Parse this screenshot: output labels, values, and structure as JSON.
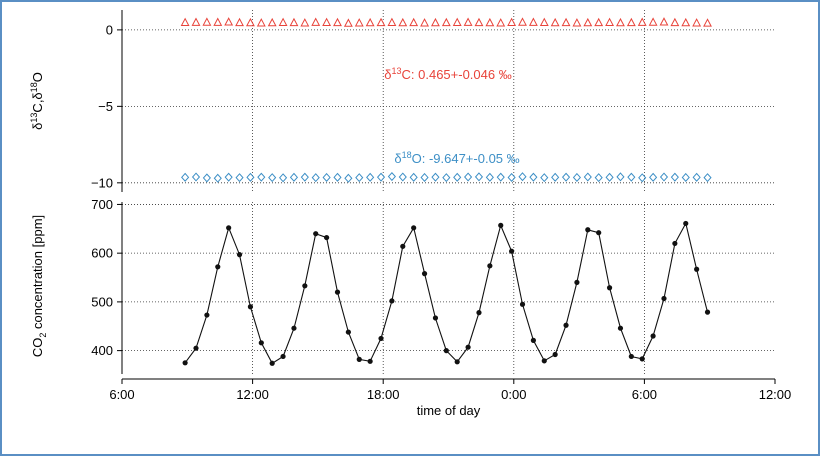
{
  "chart_data": [
    {
      "type": "scatter",
      "xlabel": "",
      "ylabel_parts": {
        "delta1": "δ",
        "sup1": "13",
        "mid": "C,δ",
        "sup2": "18",
        "end": "O"
      },
      "ylim": [
        -10.6,
        1.3
      ],
      "yticks": [
        0,
        -5,
        -10
      ],
      "ytick_labels": [
        "0",
        "−5",
        "−10"
      ],
      "grid": true,
      "series": [
        {
          "key": "d13c",
          "marker": "triangle",
          "color": "#e8433a",
          "annotation": {
            "delta": "δ",
            "sup": "13",
            "text": "C: 0.465+-0.046 ‰"
          },
          "x": [
            8.9,
            9.4,
            9.9,
            10.4,
            10.9,
            11.4,
            11.9,
            12.4,
            12.9,
            13.4,
            13.9,
            14.4,
            14.9,
            15.4,
            15.9,
            16.4,
            16.9,
            17.4,
            17.9,
            18.4,
            18.9,
            19.4,
            19.9,
            20.4,
            20.9,
            21.4,
            21.9,
            22.4,
            22.9,
            23.4,
            23.9,
            24.4,
            24.9,
            25.4,
            25.9,
            26.4,
            26.9,
            27.4,
            27.9,
            28.4,
            28.9,
            29.4,
            29.9,
            30.4,
            30.9,
            31.4,
            31.9,
            32.4,
            32.9
          ],
          "y": [
            0.47,
            0.48,
            0.49,
            0.48,
            0.5,
            0.46,
            0.45,
            0.44,
            0.45,
            0.47,
            0.46,
            0.44,
            0.48,
            0.47,
            0.46,
            0.42,
            0.44,
            0.45,
            0.46,
            0.47,
            0.45,
            0.46,
            0.44,
            0.45,
            0.46,
            0.47,
            0.48,
            0.46,
            0.45,
            0.44,
            0.47,
            0.49,
            0.48,
            0.47,
            0.45,
            0.46,
            0.44,
            0.45,
            0.46,
            0.47,
            0.45,
            0.46,
            0.48,
            0.49,
            0.5,
            0.46,
            0.45,
            0.44,
            0.43
          ]
        },
        {
          "key": "d18o",
          "marker": "diamond",
          "color": "#3d8fc6",
          "annotation": {
            "delta": "δ",
            "sup": "18",
            "text": "O: -9.647+-0.05 ‰"
          },
          "x": [
            8.9,
            9.4,
            9.9,
            10.4,
            10.9,
            11.4,
            11.9,
            12.4,
            12.9,
            13.4,
            13.9,
            14.4,
            14.9,
            15.4,
            15.9,
            16.4,
            16.9,
            17.4,
            17.9,
            18.4,
            18.9,
            19.4,
            19.9,
            20.4,
            20.9,
            21.4,
            21.9,
            22.4,
            22.9,
            23.4,
            23.9,
            24.4,
            24.9,
            25.4,
            25.9,
            26.4,
            26.9,
            27.4,
            27.9,
            28.4,
            28.9,
            29.4,
            29.9,
            30.4,
            30.9,
            31.4,
            31.9,
            32.4,
            32.9
          ],
          "y": [
            -9.64,
            -9.62,
            -9.68,
            -9.7,
            -9.63,
            -9.66,
            -9.64,
            -9.63,
            -9.66,
            -9.67,
            -9.64,
            -9.63,
            -9.66,
            -9.65,
            -9.64,
            -9.7,
            -9.66,
            -9.64,
            -9.63,
            -9.59,
            -9.62,
            -9.64,
            -9.65,
            -9.63,
            -9.66,
            -9.64,
            -9.62,
            -9.61,
            -9.64,
            -9.63,
            -9.65,
            -9.6,
            -9.63,
            -9.66,
            -9.64,
            -9.63,
            -9.65,
            -9.62,
            -9.66,
            -9.64,
            -9.61,
            -9.63,
            -9.67,
            -9.64,
            -9.62,
            -9.63,
            -9.65,
            -9.64,
            -9.66
          ]
        }
      ]
    },
    {
      "type": "line",
      "xlabel": "time of day",
      "ylabel_parts": {
        "pre": "CO",
        "sub": "2",
        "post": " concentration [ppm]"
      },
      "ylim": [
        352,
        705
      ],
      "yticks": [
        400,
        500,
        600,
        700
      ],
      "xlim": [
        6,
        36
      ],
      "xticks": [
        6,
        12,
        18,
        24,
        30,
        36
      ],
      "xtick_labels": [
        "6:00",
        "12:00",
        "18:00",
        "0:00",
        "6:00",
        "12:00"
      ],
      "grid": true,
      "color": "#111111",
      "x": [
        8.9,
        9.4,
        9.9,
        10.4,
        10.9,
        11.4,
        11.9,
        12.4,
        12.9,
        13.4,
        13.9,
        14.4,
        14.9,
        15.4,
        15.9,
        16.4,
        16.9,
        17.4,
        17.9,
        18.4,
        18.9,
        19.4,
        19.9,
        20.4,
        20.9,
        21.4,
        21.9,
        22.4,
        22.9,
        23.4,
        23.9,
        24.4,
        24.9,
        25.4,
        25.9,
        26.4,
        26.9,
        27.4,
        27.9,
        28.4,
        28.9,
        29.4,
        29.9,
        30.4,
        30.9,
        31.4,
        31.9,
        32.4,
        32.9
      ],
      "y": [
        375,
        405,
        473,
        572,
        652,
        597,
        490,
        416,
        374,
        388,
        446,
        533,
        640,
        632,
        520,
        438,
        382,
        378,
        425,
        502,
        614,
        652,
        558,
        467,
        400,
        377,
        407,
        478,
        574,
        657,
        604,
        495,
        421,
        379,
        392,
        452,
        540,
        648,
        642,
        529,
        446,
        388,
        383,
        430,
        507,
        620,
        661,
        567,
        479
      ]
    }
  ]
}
